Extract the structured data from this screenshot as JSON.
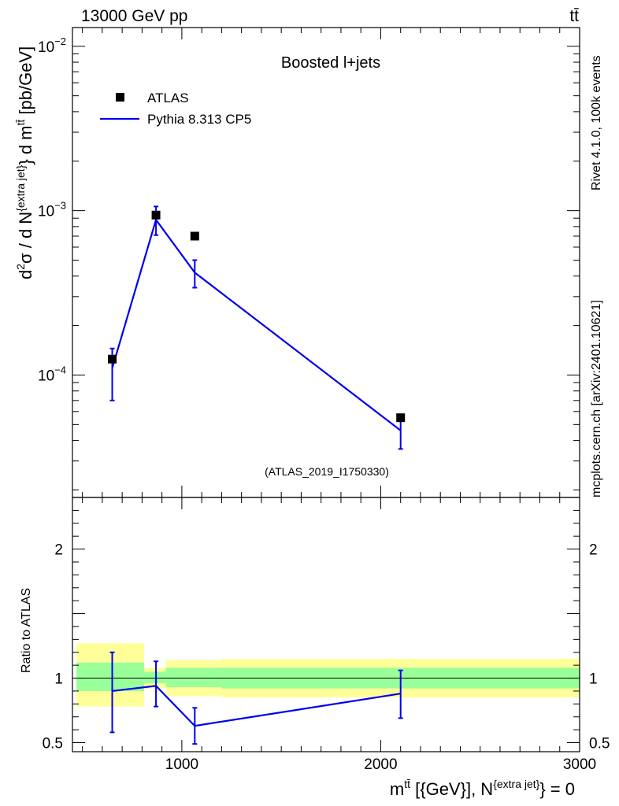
{
  "header": {
    "energy_label": "13000 GeV pp",
    "process_label": "tt̄"
  },
  "side": {
    "rivet_label": "Rivet 4.1.0,  100k events",
    "source_label": "mcplots.cern.ch [arXiv:2401.10621]"
  },
  "chart_data": [
    {
      "type": "scatter",
      "panel": "main",
      "title": "Boosted l+jets",
      "analysis_label": "(ATLAS_2019_I1750330)",
      "ylabel": {
        "base": "d",
        "sup1": "2",
        "sigma": "σ  /  d N",
        "sup2": "{extra jet}",
        "mid": "} d m",
        "sup3": "tt̄",
        "unit": " [pb/GeV]"
      },
      "yscale": "log",
      "ylim": [
        1.8e-05,
        0.013
      ],
      "y_major_ticks": [
        {
          "value": 0.0001,
          "mant": "10",
          "exp": "−4"
        },
        {
          "value": 0.001,
          "mant": "10",
          "exp": "−3"
        },
        {
          "value": 0.01,
          "mant": "10",
          "exp": "−2"
        }
      ],
      "legend": [
        {
          "label": "ATLAS",
          "marker": "square",
          "color": "#000000"
        },
        {
          "label": "Pythia 8.313 CP5",
          "marker": "line",
          "color": "#0000ee"
        }
      ],
      "series": [
        {
          "name": "ATLAS",
          "x": [
            650,
            870,
            1065,
            2100
          ],
          "y": [
            0.000125,
            0.00094,
            0.0007,
            5.5e-05
          ]
        },
        {
          "name": "Pythia 8.313 CP5",
          "x": [
            650,
            870,
            1065,
            2100
          ],
          "y": [
            0.00011,
            0.00088,
            0.00042,
            4.6e-05
          ],
          "y_err_low": [
            7e-05,
            0.00071,
            0.00034,
            3.55e-05
          ],
          "y_err_high": [
            0.000145,
            0.00106,
            0.0005,
            5.6e-05
          ]
        }
      ]
    },
    {
      "type": "line",
      "panel": "ratio",
      "ylabel": "Ratio to ATLAS",
      "xlabel": {
        "base": "m",
        "sup1": "tt̄",
        "mid": " [{GeV}], N",
        "sup2": "{extra jet}",
        "tail": "} = 0"
      },
      "xlim": [
        450,
        3000
      ],
      "x_major_ticks": [
        1000,
        2000,
        3000
      ],
      "x_tick_labels": [
        "1000",
        "2000",
        "3000"
      ],
      "ylim": [
        0.43,
        2.4
      ],
      "y_tick_labels": [
        {
          "value": 0.5,
          "label": "0.5"
        },
        {
          "value": 1,
          "label": "1"
        },
        {
          "value": 2,
          "label": "2"
        }
      ],
      "bands": {
        "bins": [
          {
            "x0": 470,
            "x1": 810,
            "yellow": [
              0.78,
              1.27
            ],
            "green": [
              0.9,
              1.12
            ]
          },
          {
            "x0": 810,
            "x1": 920,
            "yellow": [
              0.92,
              1.08
            ],
            "green": [
              0.96,
              1.05
            ]
          },
          {
            "x0": 920,
            "x1": 1200,
            "yellow": [
              0.86,
              1.14
            ],
            "green": [
              0.93,
              1.08
            ]
          },
          {
            "x0": 1200,
            "x1": 3000,
            "yellow": [
              0.85,
              1.15
            ],
            "green": [
              0.92,
              1.08
            ]
          }
        ]
      },
      "series": [
        {
          "name": "Pythia 8.313 CP5",
          "x": [
            650,
            870,
            1065,
            2100
          ],
          "y": [
            0.9,
            0.94,
            0.63,
            0.88
          ],
          "y_err_low": [
            0.58,
            0.78,
            0.49,
            0.69
          ],
          "y_err_high": [
            1.2,
            1.13,
            0.77,
            1.06
          ]
        }
      ]
    }
  ]
}
